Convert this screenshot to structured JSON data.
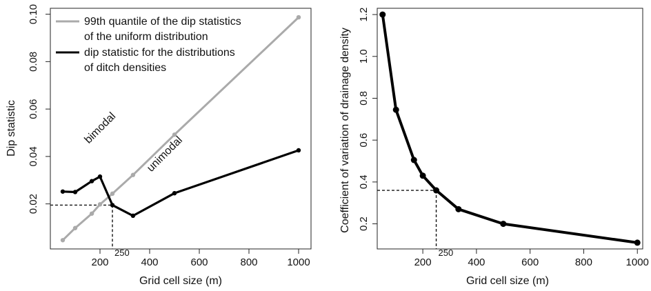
{
  "chart_data": [
    {
      "type": "line",
      "xlabel": "Grid cell size (m)",
      "ylabel": "Dip statistic",
      "xlim": [
        0,
        1050
      ],
      "ylim": [
        0.001,
        0.1025
      ],
      "xticks": [
        200,
        400,
        600,
        800,
        1000
      ],
      "yticks": [
        0.02,
        0.04,
        0.06,
        0.08,
        0.1
      ],
      "ytick_labels": [
        "0.02",
        "0.04",
        "0.06",
        "0.08",
        "0.10"
      ],
      "legend_placement": "top-left",
      "series": [
        {
          "name": "99th quantile of the dip statistics of the uniform distribution",
          "legend_lines": [
            "99th quantile of the dip statistics",
            "of the uniform distribution"
          ],
          "color": "#aaaaaa",
          "x": [
            50,
            100,
            167,
            200,
            250,
            333,
            500,
            1000
          ],
          "y": [
            0.0047,
            0.0098,
            0.0159,
            0.0198,
            0.0243,
            0.0322,
            0.0492,
            0.0987
          ]
        },
        {
          "name": "dip statistic for the distributions of ditch densities",
          "legend_lines": [
            "dip statistic for the distributions",
            "of ditch densities"
          ],
          "color": "#000000",
          "x": [
            50,
            100,
            167,
            200,
            250,
            333,
            500,
            1000
          ],
          "y": [
            0.0252,
            0.025,
            0.0296,
            0.0315,
            0.0195,
            0.015,
            0.0245,
            0.0426
          ]
        }
      ],
      "annotations": [
        {
          "text": "bimodal",
          "x": 210,
          "y": 0.051
        },
        {
          "text": "unimodal",
          "x": 470,
          "y": 0.04
        },
        {
          "text": "250",
          "x": 250,
          "y": 0.0035
        }
      ],
      "reference": {
        "x": 250,
        "y": 0.0195
      }
    },
    {
      "type": "line",
      "xlabel": "Grid cell size (m)",
      "ylabel": "Coefficient of variation of drainage density",
      "xlim": [
        30,
        1020
      ],
      "ylim": [
        0.08,
        1.23
      ],
      "xticks": [
        200,
        400,
        600,
        800,
        1000
      ],
      "yticks": [
        0.2,
        0.4,
        0.6,
        0.8,
        1.0,
        1.2
      ],
      "ytick_labels": [
        "0.2",
        "0.4",
        "0.6",
        "0.8",
        "1.0",
        "1.2"
      ],
      "series": [
        {
          "color": "#000000",
          "x": [
            50,
            100,
            167,
            200,
            250,
            333,
            500,
            1000
          ],
          "y": [
            1.2,
            0.745,
            0.505,
            0.43,
            0.36,
            0.27,
            0.2,
            0.11
          ]
        }
      ],
      "annotations": [
        {
          "text": "250",
          "x": 250,
          "y": 0.085
        }
      ],
      "reference": {
        "x": 250,
        "y": 0.36
      }
    }
  ]
}
